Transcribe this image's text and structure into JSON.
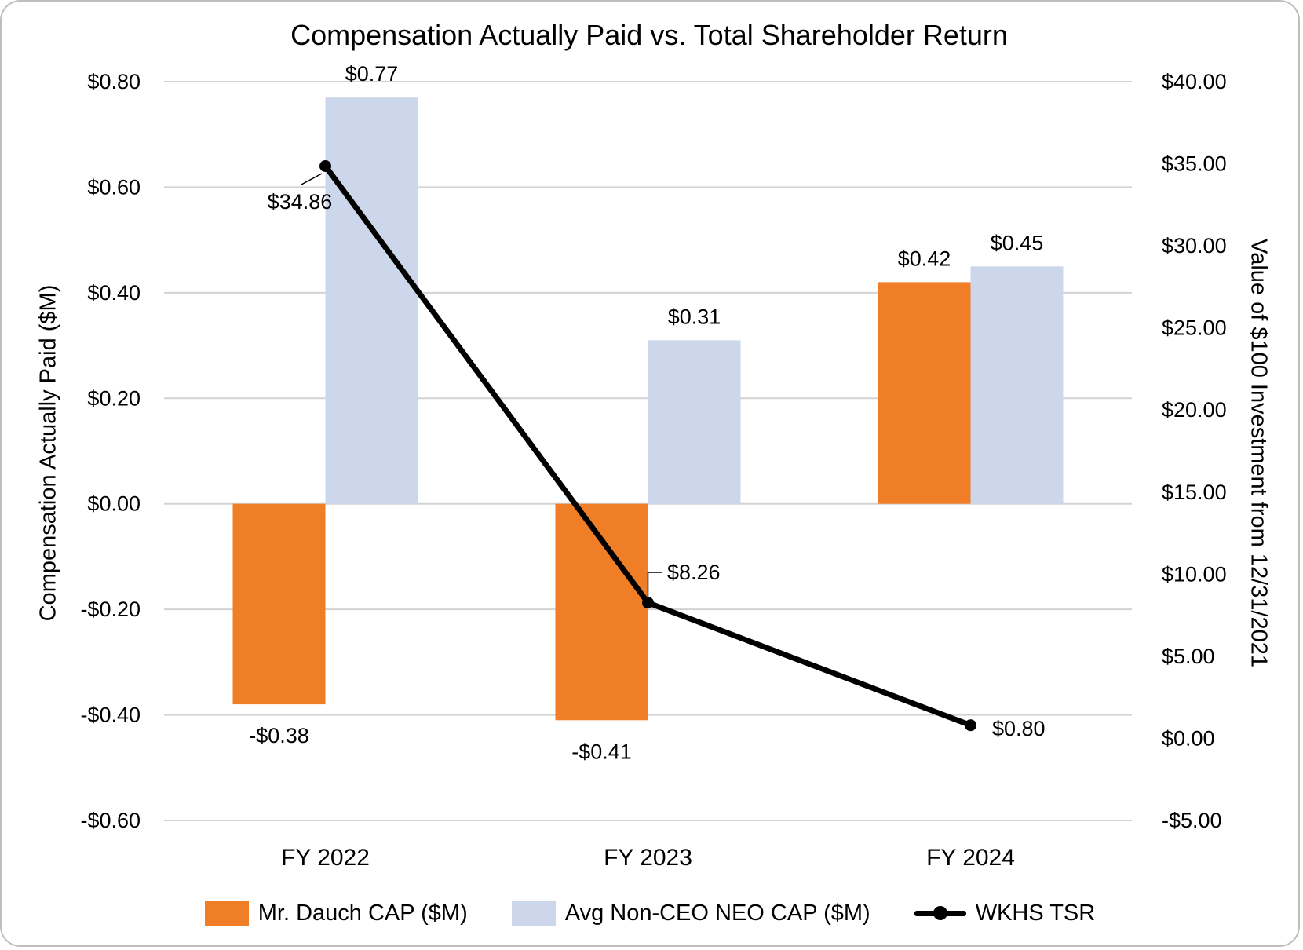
{
  "chart_data": {
    "type": "combo",
    "title": "Compensation Actually Paid vs. Total Shareholder Return",
    "categories": [
      "FY 2022",
      "FY 2023",
      "FY 2024"
    ],
    "series": [
      {
        "name": "Mr. Dauch CAP ($M)",
        "type": "bar",
        "axis": "left",
        "color": "#F07E26",
        "values": [
          -0.38,
          -0.41,
          0.42
        ],
        "labels": [
          "-$0.38",
          "-$0.41",
          "$0.42"
        ]
      },
      {
        "name": "Avg Non-CEO NEO CAP ($M)",
        "type": "bar",
        "axis": "left",
        "color": "#CDD7EB",
        "values": [
          0.77,
          0.31,
          0.45
        ],
        "labels": [
          "$0.77",
          "$0.31",
          "$0.45"
        ]
      },
      {
        "name": "WKHS TSR",
        "type": "line",
        "axis": "right",
        "color": "#000000",
        "values": [
          34.86,
          8.26,
          0.8
        ],
        "labels": [
          "$34.86",
          "$8.26",
          "$0.80"
        ]
      }
    ],
    "left_axis": {
      "label": "Compensation Actually Paid ($M)",
      "max": 0.8,
      "min": -0.6,
      "step": 0.2,
      "ticks": [
        "$0.80",
        "$0.60",
        "$0.40",
        "$0.20",
        "$0.00",
        "-$0.20",
        "-$0.40",
        "-$0.60"
      ]
    },
    "right_axis": {
      "label": "Value of $100 Investment from 12/31/2021",
      "max": 40,
      "min": -5,
      "step": 5,
      "ticks": [
        "$40.00",
        "$35.00",
        "$30.00",
        "$25.00",
        "$20.00",
        "$15.00",
        "$10.00",
        "$5.00",
        "$0.00",
        "-$5.00"
      ]
    },
    "grid": "horizontal",
    "legend_position": "bottom",
    "colors": {
      "gridline": "#d3d3d3",
      "border": "#bebebe",
      "text": "#000000"
    }
  }
}
